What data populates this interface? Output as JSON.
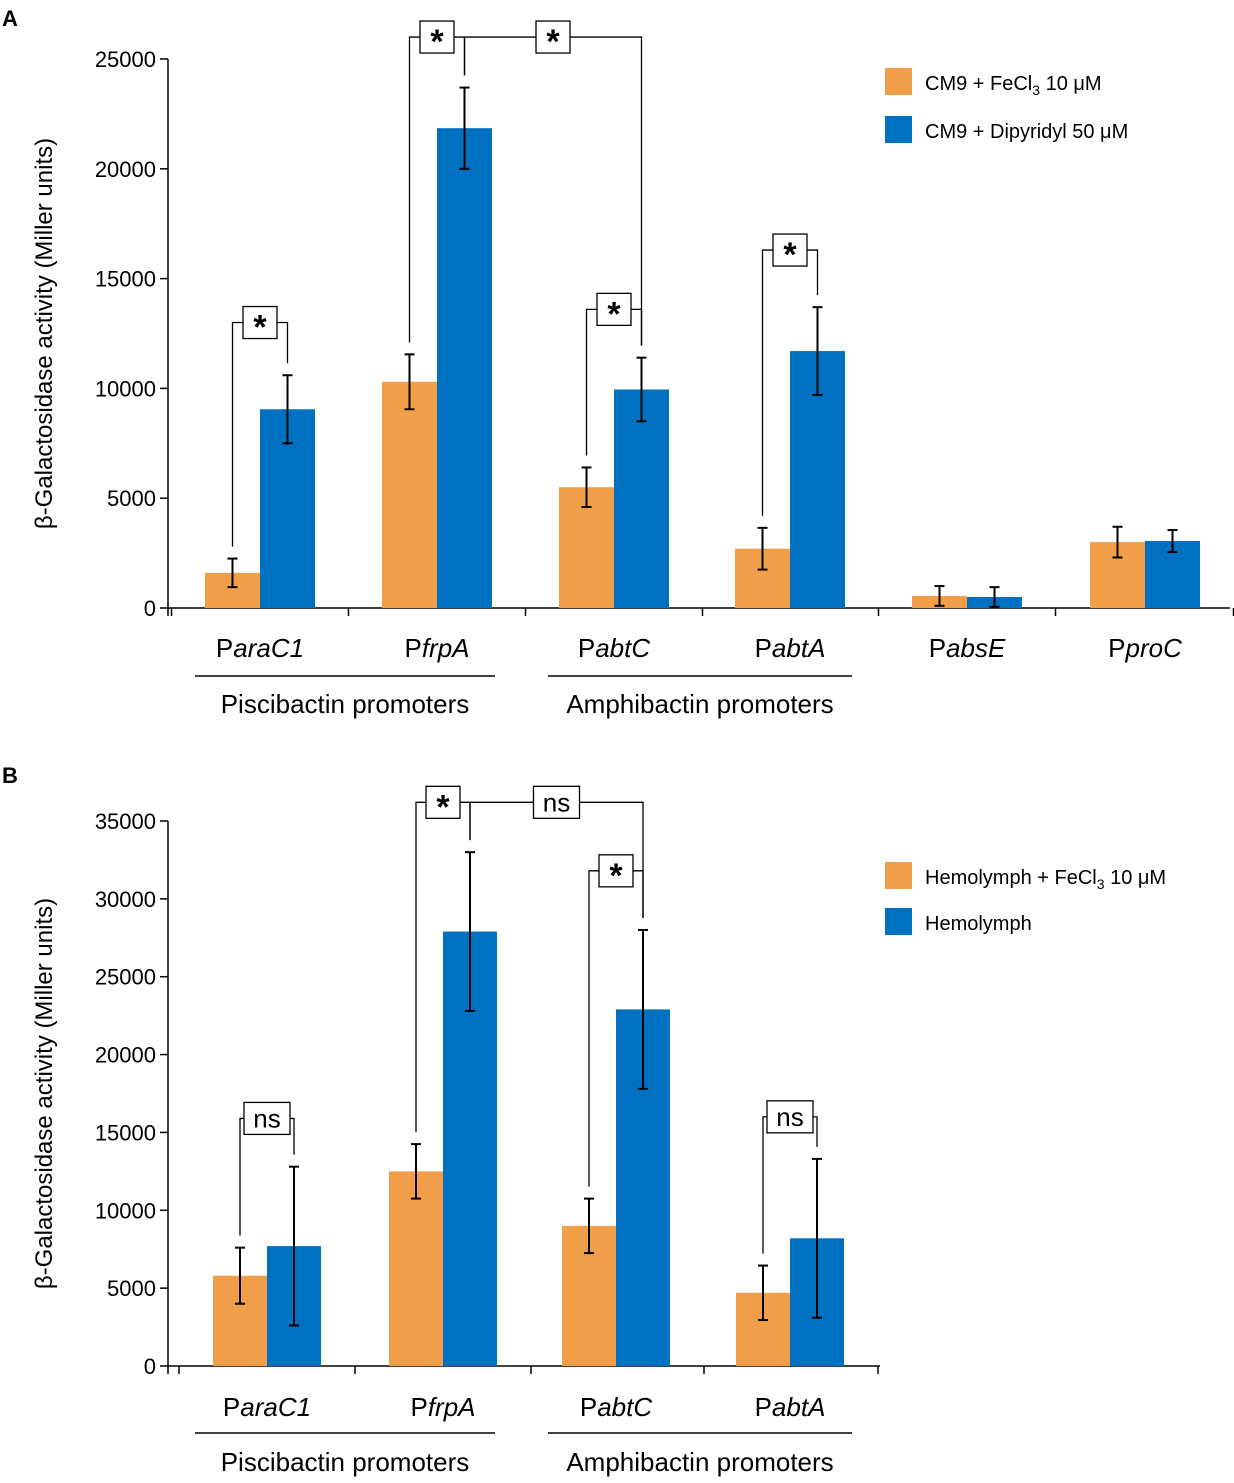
{
  "chart_data": [
    {
      "panel_label": "A",
      "type": "bar",
      "title": "",
      "xlabel": "",
      "ylabel": "β-Galactosidase activity (Miller units)",
      "ylim": [
        0,
        25000
      ],
      "yticks": [
        "0",
        "5000",
        "10000",
        "15000",
        "20000",
        "25000"
      ],
      "grid": false,
      "legend_position": "top-right",
      "categories": [
        {
          "prefix": "P",
          "name": "araC1",
          "display": "ParaC1"
        },
        {
          "prefix": "P",
          "name": "frpA",
          "display": "PfrpA"
        },
        {
          "prefix": "P",
          "name": "abtC",
          "display": "PabtC"
        },
        {
          "prefix": "P",
          "name": "abtA",
          "display": "PabtA"
        },
        {
          "prefix": "P",
          "name": "absE",
          "display": "PabsE"
        },
        {
          "prefix": "P",
          "name": "proC",
          "display": "PproC"
        }
      ],
      "series": [
        {
          "name": "CM9 + FeCl3 10 μM",
          "legend_main": "CM9 + FeCl",
          "legend_sub": "3",
          "legend_tail": " 10 μM",
          "color": "#F19E4A",
          "values": [
            1600,
            10300,
            5500,
            2700,
            550,
            3000
          ],
          "errors": [
            650,
            1250,
            900,
            950,
            450,
            700
          ]
        },
        {
          "name": "CM9 + Dipyridyl 50 μM",
          "legend_main": "CM9 + Dipyridyl 50 μM",
          "legend_sub": "",
          "legend_tail": "",
          "color": "#0070C0",
          "values": [
            9050,
            21850,
            9950,
            11700,
            500,
            3050
          ],
          "errors": [
            1550,
            1850,
            1450,
            2000,
            450,
            500
          ]
        }
      ],
      "groups": [
        {
          "label": "Piscibactin promoters",
          "from": 0,
          "to": 1
        },
        {
          "label": "Amphibactin promoters",
          "from": 2,
          "to": 3
        }
      ],
      "significance": [
        {
          "label": "*",
          "from": [
            0,
            0
          ],
          "to": [
            0,
            1
          ],
          "level": 13000
        },
        {
          "label": "*",
          "from": [
            1,
            0
          ],
          "to": [
            1,
            1
          ],
          "level": 26000
        },
        {
          "label": "*",
          "from": [
            1,
            1
          ],
          "to": [
            2,
            1
          ],
          "level": 26000
        },
        {
          "label": "*",
          "from": [
            2,
            0
          ],
          "to": [
            2,
            1
          ],
          "level": 13600
        },
        {
          "label": "*",
          "from": [
            3,
            0
          ],
          "to": [
            3,
            1
          ],
          "level": 16300
        }
      ]
    },
    {
      "panel_label": "B",
      "type": "bar",
      "title": "",
      "xlabel": "",
      "ylabel": "β-Galactosidase activity (Miller units)",
      "ylim": [
        0,
        35000
      ],
      "yticks": [
        "0",
        "5000",
        "10000",
        "15000",
        "20000",
        "25000",
        "30000",
        "35000"
      ],
      "grid": false,
      "legend_position": "top-right",
      "categories": [
        {
          "prefix": "P",
          "name": "araC1",
          "display": "ParaC1"
        },
        {
          "prefix": "P",
          "name": "frpA",
          "display": "PfrpA"
        },
        {
          "prefix": "P",
          "name": "abtC",
          "display": "PabtC"
        },
        {
          "prefix": "P",
          "name": "abtA",
          "display": "PabtA"
        }
      ],
      "series": [
        {
          "name": "Hemolymph + FeCl3 10 μM",
          "legend_main": "Hemolymph + FeCl",
          "legend_sub": "3",
          "legend_tail": " 10 μM",
          "color": "#F19E4A",
          "values": [
            5800,
            12500,
            9000,
            4700
          ],
          "errors": [
            1800,
            1750,
            1750,
            1750
          ]
        },
        {
          "name": "Hemolymph",
          "legend_main": "Hemolymph",
          "legend_sub": "",
          "legend_tail": "",
          "color": "#0070C0",
          "values": [
            7700,
            27900,
            22900,
            8200
          ],
          "errors": [
            5100,
            5100,
            5100,
            5100
          ]
        }
      ],
      "groups": [
        {
          "label": "Piscibactin promoters",
          "from": 0,
          "to": 1
        },
        {
          "label": "Amphibactin promoters",
          "from": 2,
          "to": 3
        }
      ],
      "significance": [
        {
          "label": "ns",
          "from": [
            0,
            0
          ],
          "to": [
            0,
            1
          ],
          "level": 15900
        },
        {
          "label": "*",
          "from": [
            1,
            0
          ],
          "to": [
            1,
            1
          ],
          "level": 36200
        },
        {
          "label": "ns",
          "from": [
            1,
            1
          ],
          "to": [
            2,
            1
          ],
          "level": 36200
        },
        {
          "label": "*",
          "from": [
            2,
            0
          ],
          "to": [
            2,
            1
          ],
          "level": 31800
        },
        {
          "label": "ns",
          "from": [
            3,
            0
          ],
          "to": [
            3,
            1
          ],
          "level": 16000
        }
      ]
    }
  ]
}
